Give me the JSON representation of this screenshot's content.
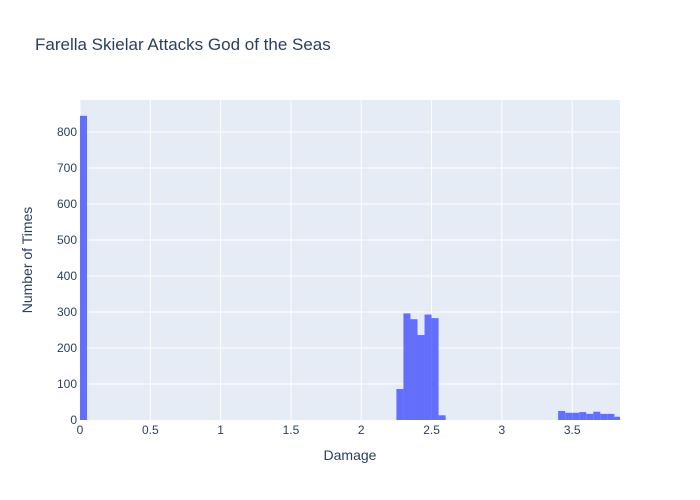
{
  "chart_data": {
    "type": "bar",
    "title": "Farella Skielar Attacks God of the Seas",
    "xlabel": "Damage",
    "ylabel": "Number of Times",
    "xlim": [
      0,
      3.84
    ],
    "ylim": [
      0,
      889
    ],
    "x_ticks": [
      0,
      0.5,
      1,
      1.5,
      2,
      2.5,
      3,
      3.5
    ],
    "x_tick_labels": [
      "0",
      "0.5",
      "1",
      "1.5",
      "2",
      "2.5",
      "3",
      "3.5"
    ],
    "y_ticks": [
      0,
      100,
      200,
      300,
      400,
      500,
      600,
      700,
      800
    ],
    "y_tick_labels": [
      "0",
      "100",
      "200",
      "300",
      "400",
      "500",
      "600",
      "700",
      "800"
    ],
    "bar_color": "#636efa",
    "plot_bgcolor": "#e5ecf6",
    "grid": true,
    "bins": [
      {
        "x0": 0.0,
        "x1": 0.05,
        "value": 845
      },
      {
        "x0": 2.25,
        "x1": 2.3,
        "value": 86
      },
      {
        "x0": 2.3,
        "x1": 2.35,
        "value": 296
      },
      {
        "x0": 2.35,
        "x1": 2.4,
        "value": 280
      },
      {
        "x0": 2.4,
        "x1": 2.45,
        "value": 236
      },
      {
        "x0": 2.45,
        "x1": 2.5,
        "value": 293
      },
      {
        "x0": 2.5,
        "x1": 2.55,
        "value": 283
      },
      {
        "x0": 2.55,
        "x1": 2.6,
        "value": 13
      },
      {
        "x0": 3.4,
        "x1": 3.45,
        "value": 25
      },
      {
        "x0": 3.45,
        "x1": 3.5,
        "value": 20
      },
      {
        "x0": 3.5,
        "x1": 3.55,
        "value": 20
      },
      {
        "x0": 3.55,
        "x1": 3.6,
        "value": 22
      },
      {
        "x0": 3.6,
        "x1": 3.65,
        "value": 17
      },
      {
        "x0": 3.65,
        "x1": 3.7,
        "value": 23
      },
      {
        "x0": 3.7,
        "x1": 3.75,
        "value": 17
      },
      {
        "x0": 3.75,
        "x1": 3.8,
        "value": 17
      },
      {
        "x0": 3.8,
        "x1": 3.84,
        "value": 9
      }
    ]
  }
}
